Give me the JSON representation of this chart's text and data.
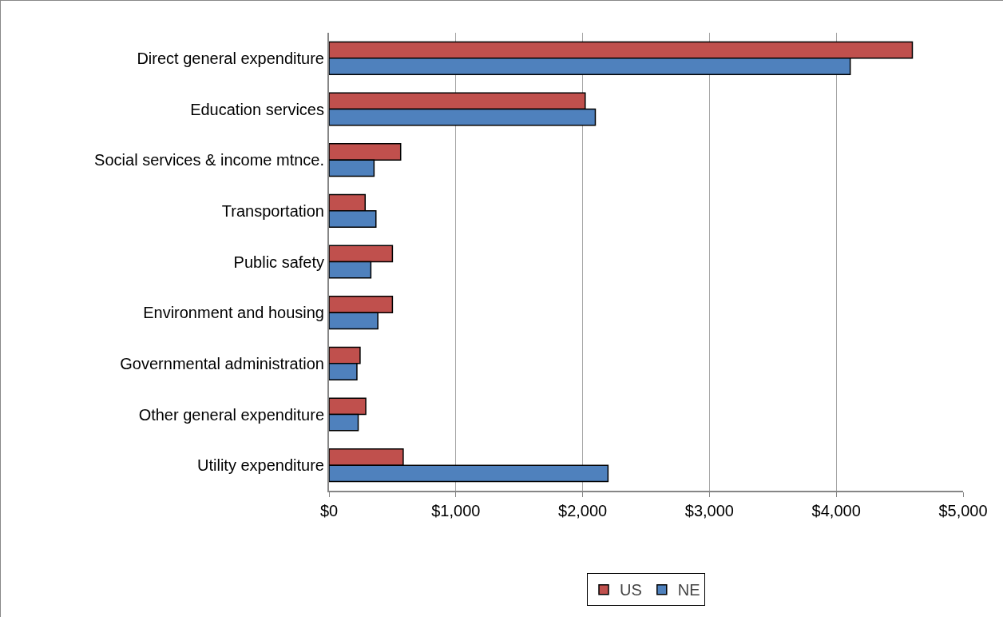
{
  "chart_data": {
    "type": "bar",
    "orientation": "horizontal",
    "categories": [
      "Direct general expenditure",
      "Education services",
      "Social services & income mtnce.",
      "Transportation",
      "Public safety",
      "Environment and housing",
      "Governmental administration",
      "Other general expenditure",
      "Utility expenditure"
    ],
    "series": [
      {
        "name": "US",
        "color": "#c0504d",
        "values": [
          4600,
          2020,
          565,
          285,
          500,
          500,
          245,
          290,
          585
        ]
      },
      {
        "name": "NE",
        "color": "#4f81bd",
        "values": [
          4110,
          2100,
          355,
          370,
          330,
          385,
          220,
          230,
          2200
        ]
      }
    ],
    "xlim": [
      0,
      5000
    ],
    "xticks": [
      {
        "value": 0,
        "label": "$0"
      },
      {
        "value": 1000,
        "label": "$1,000"
      },
      {
        "value": 2000,
        "label": "$2,000"
      },
      {
        "value": 3000,
        "label": "$3,000"
      },
      {
        "value": 4000,
        "label": "$4,000"
      },
      {
        "value": 5000,
        "label": "$5,000"
      }
    ],
    "grid": "x",
    "legend": "bottom"
  }
}
